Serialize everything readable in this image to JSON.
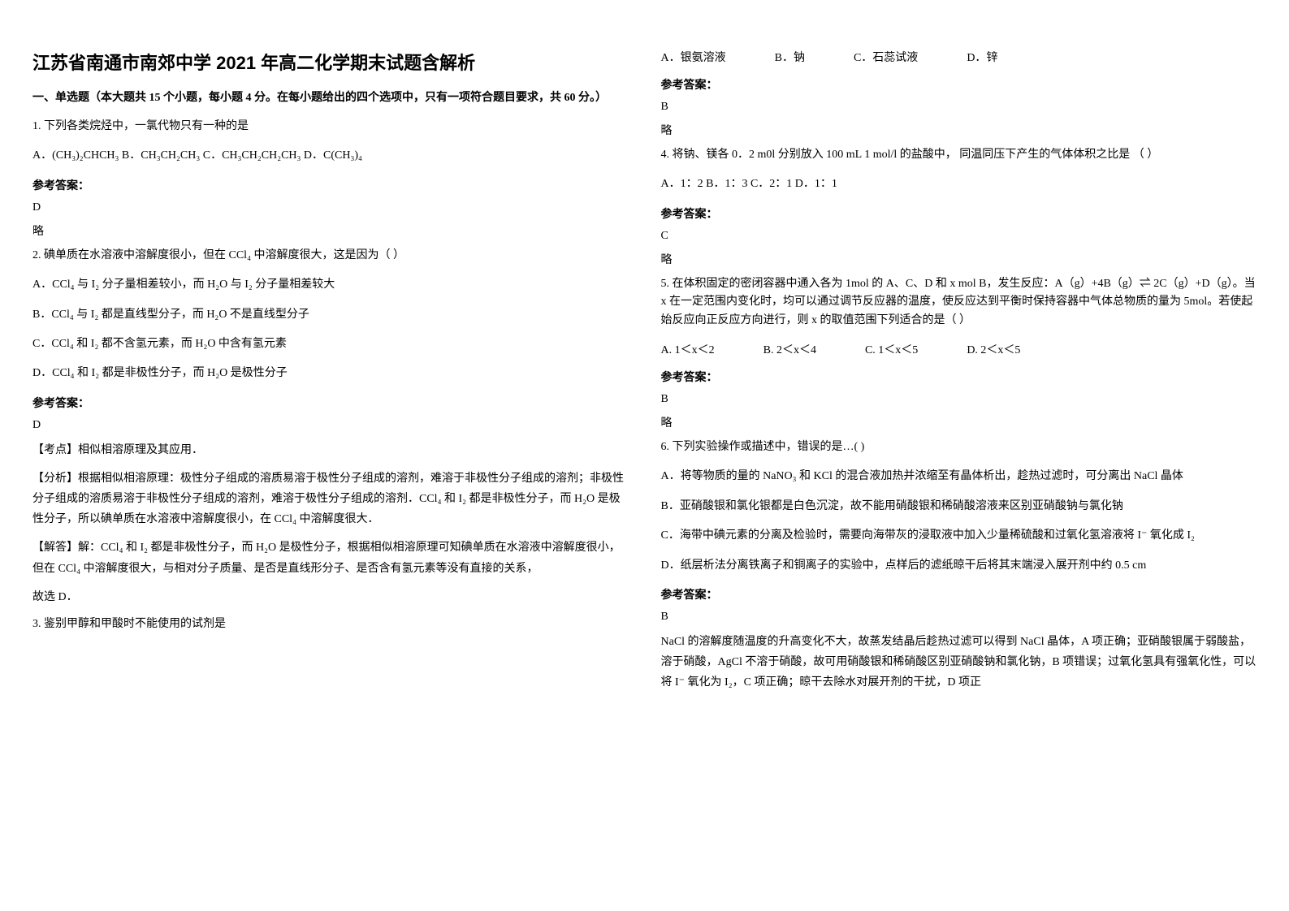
{
  "title": "江苏省南通市南郊中学 2021 年高二化学期末试题含解析",
  "section_header": "一、单选题（本大题共 15 个小题，每小题 4 分。在每小题给出的四个选项中，只有一项符合题目要求，共 60 分。）",
  "q1": {
    "stem": "1. 下列各类烷烃中，一氯代物只有一种的是",
    "options": "A．(CH₃)₂CHCH₃    B．CH₃CH₂CH₃    C．CH₃CH₂CH₂CH₃    D．C(CH₃)₄",
    "answer_label": "参考答案：",
    "answer": "D",
    "note": "略"
  },
  "q2": {
    "stem": "2. 碘单质在水溶液中溶解度很小，但在 CCl₄ 中溶解度很大，这是因为（    ）",
    "optA": "A．CCl₄ 与 I₂ 分子量相差较小，而 H₂O 与 I₂ 分子量相差较大",
    "optB": "B．CCl₄ 与 I₂ 都是直线型分子，而 H₂O 不是直线型分子",
    "optC": "C．CCl₄ 和 I₂ 都不含氢元素，而 H₂O 中含有氢元素",
    "optD": "D．CCl₄ 和 I₂ 都是非极性分子，而 H₂O 是极性分子",
    "answer_label": "参考答案：",
    "answer": "D",
    "point": "【考点】相似相溶原理及其应用．",
    "analysis": "【分析】根据相似相溶原理：极性分子组成的溶质易溶于极性分子组成的溶剂，难溶于非极性分子组成的溶剂；非极性分子组成的溶质易溶于非极性分子组成的溶剂，难溶于极性分子组成的溶剂．CCl₄ 和 I₂ 都是非极性分子，而 H₂O 是极性分子，所以碘单质在水溶液中溶解度很小，在 CCl₄ 中溶解度很大．",
    "solve": "【解答】解：CCl₄ 和 I₂ 都是非极性分子，而 H₂O 是极性分子，根据相似相溶原理可知碘单质在水溶液中溶解度很小，但在 CCl₄ 中溶解度很大，与相对分子质量、是否是直线形分子、是否含有氢元素等没有直接的关系，",
    "conclude": "故选 D．"
  },
  "q3": {
    "stem": "3. 鉴别甲醇和甲酸时不能使用的试剂是",
    "optA": "A．银氨溶液",
    "optB": "B．钠",
    "optC": "C．石蕊试液",
    "optD": "D．锌",
    "answer_label": "参考答案：",
    "answer": "B",
    "note": "略"
  },
  "q4": {
    "stem": "4. 将钠、镁各 0．2 m0l 分别放入 100 mL 1 mol/l 的盐酸中， 同温同压下产生的气体体积之比是       （       ）",
    "options": "    A．1：2       B．1：3      C．2：1   D．1：1",
    "answer_label": "参考答案：",
    "answer": "C",
    "note": "略"
  },
  "q5": {
    "stem": "5. 在体积固定的密闭容器中通入各为 1mol 的 A、C、D 和 x mol B，发生反应：A（g）+4B（g）⇌ 2C（g）+D（g）。当 x 在一定范围内变化时，均可以通过调节反应器的温度，使反应达到平衡时保持容器中气体总物质的量为 5mol。若使起始反应向正反应方向进行，则 x 的取值范围下列适合的是（  ）",
    "optA": "A.  1＜x＜2",
    "optB": "B.  2＜x＜4",
    "optC": "C.  1＜x＜5",
    "optD": "D.  2＜x＜5",
    "answer_label": "参考答案：",
    "answer": "B",
    "note": "略"
  },
  "q6": {
    "stem": "6. 下列实验操作或描述中，错误的是…(    )",
    "optA": "A．将等物质的量的 NaNO₃ 和 KCl 的混合液加热并浓缩至有晶体析出，趁热过滤时，可分离出 NaCl 晶体",
    "optB": "B．亚硝酸银和氯化银都是白色沉淀，故不能用硝酸银和稀硝酸溶液来区别亚硝酸钠与氯化钠",
    "optC": "C．海带中碘元素的分离及检验时，需要向海带灰的浸取液中加入少量稀硫酸和过氧化氢溶液将 I⁻ 氧化成 I₂",
    "optD": "D．纸层析法分离铁离子和铜离子的实验中，点样后的滤纸晾干后将其末端浸入展开剂中约 0.5 cm",
    "answer_label": "参考答案：",
    "answer": "B",
    "explain": "NaCl 的溶解度随温度的升高变化不大，故蒸发结晶后趁热过滤可以得到 NaCl 晶体，A 项正确；亚硝酸银属于弱酸盐，溶于硝酸，AgCl 不溶于硝酸，故可用硝酸银和稀硝酸区别亚硝酸钠和氯化钠，B 项错误；过氧化氢具有强氧化性，可以将 I⁻ 氧化为 I₂，C 项正确；晾干去除水对展开剂的干扰，D 项正"
  }
}
